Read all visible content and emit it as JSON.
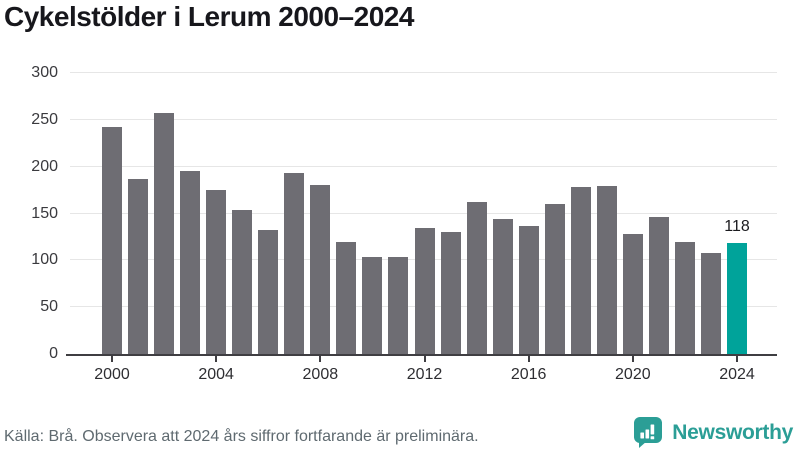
{
  "title": "Cykelstölder i Lerum 2000–2024",
  "chart_data": {
    "type": "bar",
    "title": "Cykelstölder i Lerum 2000–2024",
    "categories": [
      2000,
      2001,
      2002,
      2003,
      2004,
      2005,
      2006,
      2007,
      2008,
      2009,
      2010,
      2011,
      2012,
      2013,
      2014,
      2015,
      2016,
      2017,
      2018,
      2019,
      2020,
      2021,
      2022,
      2023,
      2024
    ],
    "values": [
      242,
      187,
      257,
      195,
      175,
      154,
      132,
      193,
      180,
      120,
      104,
      104,
      135,
      130,
      162,
      144,
      137,
      160,
      178,
      179,
      128,
      146,
      120,
      108,
      118
    ],
    "highlight_category": 2024,
    "highlight_value_label": "118",
    "xlabel": "",
    "ylabel": "",
    "ylim": [
      0,
      300
    ],
    "yticks": [
      0,
      50,
      100,
      150,
      200,
      250,
      300
    ],
    "xticks": [
      2000,
      2004,
      2008,
      2012,
      2016,
      2020,
      2024
    ],
    "grid": true,
    "legend": false,
    "colors": {
      "bar": "#6e6d73",
      "highlight": "#00a39a",
      "gridline": "#e6e6e6",
      "axis": "#3f3e42"
    }
  },
  "footer": {
    "source_note": "Källa: Brå. Observera att 2024 års siffror fortfarande är preliminära."
  },
  "branding": {
    "name": "Newsworthy",
    "icon": "newsworthy-logo-icon",
    "color": "#2b9e96"
  }
}
